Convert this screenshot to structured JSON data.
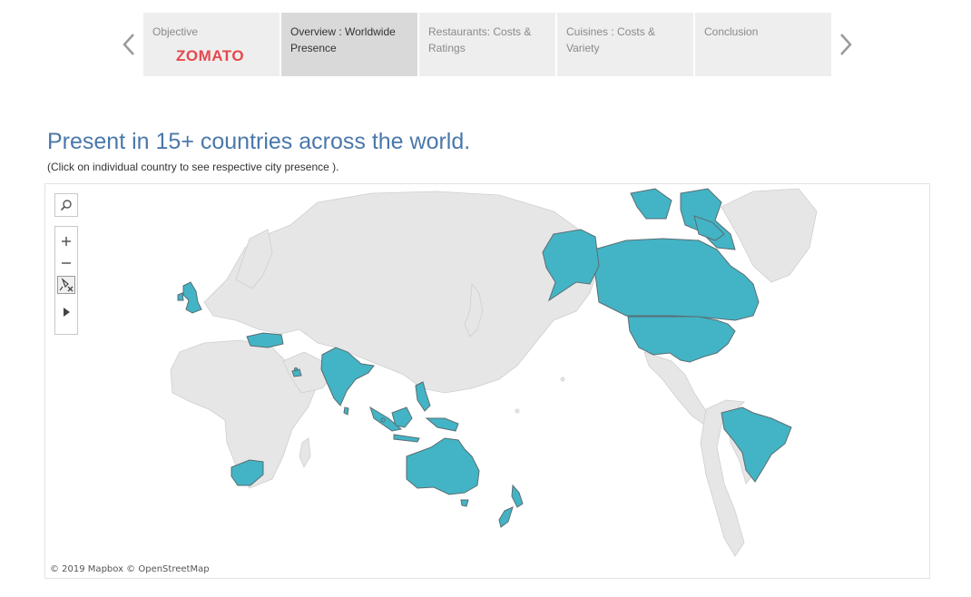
{
  "story": {
    "tabs": [
      {
        "label": "Objective",
        "logo_text": "ZOMATO",
        "active": false
      },
      {
        "label": "Overview : Worldwide Presence",
        "active": true
      },
      {
        "label": "Restaurants: Costs & Ratings",
        "active": false
      },
      {
        "label": "Cuisines : Costs & Variety",
        "active": false
      },
      {
        "label": "Conclusion",
        "active": false
      }
    ],
    "prev_icon": "chevron-left-icon",
    "next_icon": "chevron-right-icon"
  },
  "header": {
    "title": "Present in 15+ countries across the world.",
    "subtitle": "(Click on individual country to see respective city presence )."
  },
  "map": {
    "highlight_color": "#43b4c5",
    "base_land_color": "#e6e6e6",
    "border_color": "#5a6d72",
    "highlighted_countries": [
      "United Kingdom",
      "Turkey",
      "UAE",
      "India",
      "Sri Lanka",
      "Philippines",
      "Indonesia",
      "Singapore",
      "Australia",
      "New Zealand",
      "South Africa",
      "Canada",
      "United States",
      "Brazil",
      "Qatar"
    ],
    "toolbar": {
      "search_icon": "search-icon",
      "zoom_in_icon": "plus-icon",
      "zoom_out_icon": "minus-icon",
      "reset_icon": "pin-reset-icon",
      "expand_icon": "play-icon"
    },
    "attribution": "© 2019 Mapbox © OpenStreetMap"
  }
}
